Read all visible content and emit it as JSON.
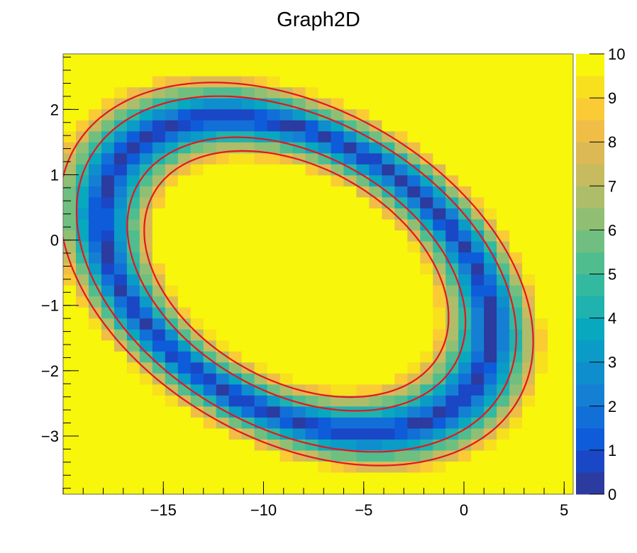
{
  "chart_data": {
    "type": "heatmap",
    "title": "Graph2D",
    "xlabel": "",
    "ylabel": "",
    "xlim": [
      -20,
      5.45
    ],
    "ylim": [
      -3.89,
      2.85
    ],
    "zlim": [
      0,
      10
    ],
    "bins": [
      40,
      40
    ],
    "x_ticks": [
      "-15",
      "-10",
      "-5",
      "0",
      "5"
    ],
    "x_tick_values": [
      -15,
      -10,
      -5,
      0,
      5
    ],
    "y_ticks": [
      "-3",
      "-2",
      "-1",
      "0",
      "1",
      "2"
    ],
    "y_tick_values": [
      -3,
      -2,
      -1,
      0,
      1,
      2
    ],
    "z_ticks": [
      "0",
      "1",
      "2",
      "3",
      "4",
      "5",
      "6",
      "7",
      "8",
      "9",
      "10"
    ],
    "z_tick_values": [
      0,
      1,
      2,
      3,
      4,
      5,
      6,
      7,
      8,
      9,
      10
    ],
    "ring": {
      "center": [
        -8.36,
        -0.52
      ],
      "covariance": [
        [
          94.2,
          -8.24
        ],
        [
          -8.24,
          5.8
        ]
      ],
      "half_width_relative": 0.29
    },
    "contour_levels": [
      4.5,
      7.5
    ],
    "grid": false,
    "colorbar": "right",
    "palette": [
      "#2b3b9f",
      "#1a47c6",
      "#0e5cd9",
      "#126fd8",
      "#1580d3",
      "#0f8ecd",
      "#0a9bc6",
      "#08a8bf",
      "#1fb2ae",
      "#33b99f",
      "#50bd8f",
      "#70bf80",
      "#90bf74",
      "#adbd69",
      "#c6bb5f",
      "#dcb955",
      "#f0bd46",
      "#fbcb35",
      "#f8e01e",
      "#f7f60b"
    ],
    "contour_color": "#e8141e",
    "frame_color": "#000000"
  }
}
